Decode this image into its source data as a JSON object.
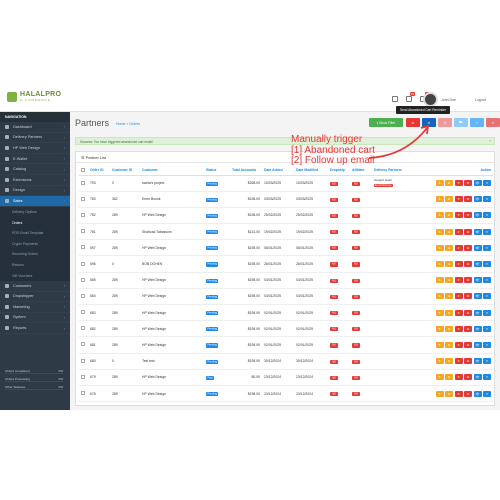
{
  "header": {
    "logo_text": "HALALPRO",
    "logo_sub": "E-COMMERCE",
    "notification_badges": [
      "19",
      "1"
    ],
    "user_name": "John Doe",
    "logout_label": "Logout"
  },
  "tooltip": "Send Abandoned Cart Reminder",
  "sidebar": {
    "title": "NAVIGATION",
    "items": [
      {
        "label": "Dashboard",
        "icon": "dashboard-icon"
      },
      {
        "label": "Delivery Partners",
        "icon": "truck-icon"
      },
      {
        "label": "HP Web Design",
        "icon": "palette-icon"
      },
      {
        "label": "E-Wallet",
        "icon": "wallet-icon"
      },
      {
        "label": "Catalog",
        "icon": "tag-icon"
      },
      {
        "label": "Extensions",
        "icon": "puzzle-icon"
      },
      {
        "label": "Design",
        "icon": "monitor-icon"
      },
      {
        "label": "Sales",
        "icon": "cart-icon"
      }
    ],
    "sales_sub": [
      "Delivery Options",
      "Orders",
      "POD Email Template",
      "Crypto Payments",
      "Recurring Orders",
      "Returns",
      "Gift Vouchers"
    ],
    "items_after": [
      {
        "label": "Customers",
        "icon": "user-icon"
      },
      {
        "label": "Dropshipper",
        "icon": "box-icon"
      },
      {
        "label": "Marketing",
        "icon": "share-icon"
      },
      {
        "label": "System",
        "icon": "gear-icon"
      },
      {
        "label": "Reports",
        "icon": "chart-icon"
      }
    ],
    "stats": [
      {
        "label": "Orders Completed",
        "value": "0%"
      },
      {
        "label": "Orders Processing",
        "value": "0%"
      },
      {
        "label": "Other Statuses",
        "value": "0%"
      }
    ]
  },
  "page": {
    "title": "Partners",
    "breadcrumb_home": "Home",
    "breadcrumb_sep": "»",
    "breadcrumb_current": "Orders",
    "show_filter_label": "Show Filter",
    "success_message": "Success: You have triggered abandoned cart email!",
    "success_close": "×",
    "panel_title": "Partner List"
  },
  "table": {
    "columns": [
      "",
      "Order ID",
      "Customer ID",
      "Customer",
      "Status",
      "Total Accounts",
      "Date Added",
      "Date Modified",
      "Dropship",
      "Affiliate",
      "Delivery Partners",
      "Action"
    ],
    "rows": [
      {
        "order_id": "793",
        "customer_id": "0",
        "customer": "sweta's project",
        "status": "Pending",
        "total": "$268.00",
        "added": "10/03/2025",
        "modified": "10/03/2025",
        "dropship": "NO",
        "affiliate": "NO",
        "partner": "support tower",
        "partner_tag": "Email Delivery"
      },
      {
        "order_id": "783",
        "customer_id": "362",
        "customer": "Emre Bozok",
        "status": "Pending",
        "total": "$198.00",
        "added": "03/03/2025",
        "modified": "03/03/2025",
        "dropship": "NO",
        "affiliate": "NO",
        "partner": "",
        "partner_tag": ""
      },
      {
        "order_id": "782",
        "customer_id": "289",
        "customer": "HP Web Design",
        "status": "Pending",
        "total": "$198.00",
        "added": "25/02/2025",
        "modified": "25/02/2025",
        "dropship": "NO",
        "affiliate": "NO",
        "partner": "",
        "partner_tag": ""
      },
      {
        "order_id": "781",
        "customer_id": "289",
        "customer": "Shahzad Tabassum",
        "status": "Pending",
        "total": "$131.00",
        "added": "19/02/2025",
        "modified": "19/02/2025",
        "dropship": "NO",
        "affiliate": "NO",
        "partner": "",
        "partner_tag": ""
      },
      {
        "order_id": "697",
        "customer_id": "289",
        "customer": "HP Web Design",
        "status": "Pending",
        "total": "$198.00",
        "added": "06/01/2025",
        "modified": "06/01/2025",
        "dropship": "NO",
        "affiliate": "NO",
        "partner": "",
        "partner_tag": ""
      },
      {
        "order_id": "696",
        "customer_id": "0",
        "customer": "BOB DOHEN",
        "status": "Pending",
        "total": "$198.00",
        "added": "26/01/2025",
        "modified": "26/01/2025",
        "dropship": "NO",
        "affiliate": "NO",
        "partner": "",
        "partner_tag": ""
      },
      {
        "order_id": "685",
        "customer_id": "289",
        "customer": "HP Web Design",
        "status": "Pending",
        "total": "$198.00",
        "added": "03/01/2025",
        "modified": "03/01/2025",
        "dropship": "NO",
        "affiliate": "NO",
        "partner": "",
        "partner_tag": ""
      },
      {
        "order_id": "684",
        "customer_id": "289",
        "customer": "HP Web Design",
        "status": "Pending",
        "total": "$198.00",
        "added": "03/01/2025",
        "modified": "03/01/2025",
        "dropship": "NO",
        "affiliate": "NO",
        "partner": "",
        "partner_tag": ""
      },
      {
        "order_id": "683",
        "customer_id": "289",
        "customer": "HP Web Design",
        "status": "Pending",
        "total": "$198.00",
        "added": "02/01/2025",
        "modified": "02/01/2025",
        "dropship": "NO",
        "affiliate": "NO",
        "partner": "",
        "partner_tag": ""
      },
      {
        "order_id": "682",
        "customer_id": "289",
        "customer": "HP Web Design",
        "status": "Pending",
        "total": "$198.00",
        "added": "02/01/2025",
        "modified": "02/01/2025",
        "dropship": "NO",
        "affiliate": "NO",
        "partner": "",
        "partner_tag": ""
      },
      {
        "order_id": "681",
        "customer_id": "289",
        "customer": "HP Web Design",
        "status": "Pending",
        "total": "$198.00",
        "added": "02/01/2025",
        "modified": "02/01/2025",
        "dropship": "NO",
        "affiliate": "NO",
        "partner": "",
        "partner_tag": ""
      },
      {
        "order_id": "680",
        "customer_id": "0",
        "customer": "Test test",
        "status": "Pending",
        "total": "$198.00",
        "added": "30/12/2024",
        "modified": "30/12/2024",
        "dropship": "NO",
        "affiliate": "NO",
        "partner": "",
        "partner_tag": ""
      },
      {
        "order_id": "679",
        "customer_id": "289",
        "customer": "HP Web Design",
        "status": "Paid",
        "total": "$0.00",
        "added": "23/12/2024",
        "modified": "23/12/2024",
        "dropship": "NO",
        "affiliate": "NO",
        "partner": "",
        "partner_tag": ""
      },
      {
        "order_id": "678",
        "customer_id": "289",
        "customer": "HP Web Design",
        "status": "Pending",
        "total": "$198.00",
        "added": "23/12/2024",
        "modified": "23/12/2024",
        "dropship": "NO",
        "affiliate": "NO",
        "partner": "",
        "partner_tag": ""
      }
    ]
  },
  "annotation": {
    "line1": "Manually trigger",
    "line2": "[1] Abandoned cart",
    "line3": "[2] Follow up email"
  },
  "colors": {
    "green": "#4caf50",
    "red": "#e53935",
    "blue": "#1e88e5",
    "orange": "#f5a623",
    "sidebar": "#2e3a46"
  }
}
